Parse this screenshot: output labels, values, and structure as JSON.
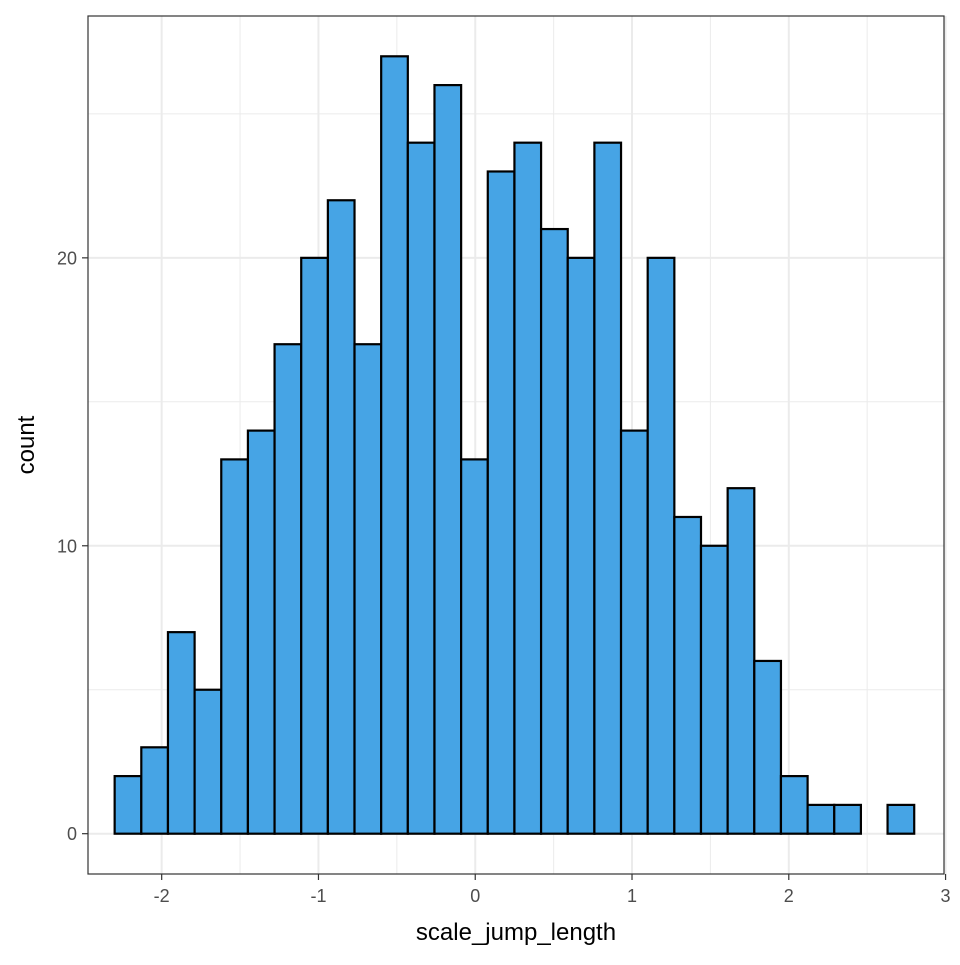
{
  "chart_data": {
    "type": "bar",
    "subtype": "histogram",
    "title": "",
    "xlabel": "scale_jump_length",
    "ylabel": "count",
    "xlim": [
      -2.47,
      2.99
    ],
    "ylim": [
      -1.4,
      28.4
    ],
    "x_ticks": [
      -2,
      -1,
      0,
      1,
      2,
      3
    ],
    "x_tick_labels": [
      "-2",
      "-1",
      "0",
      "1",
      "2",
      "3"
    ],
    "y_ticks": [
      0,
      10,
      20
    ],
    "y_tick_labels": [
      "0",
      "10",
      "20"
    ],
    "x_minor_ticks": [
      -1.5,
      -0.5,
      0.5,
      1.5,
      2.5
    ],
    "y_minor_ticks": [
      5,
      15,
      25
    ],
    "bin_width": 0.17,
    "bins": [
      {
        "center": -2.215,
        "count": 2
      },
      {
        "center": -2.045,
        "count": 3
      },
      {
        "center": -1.875,
        "count": 7
      },
      {
        "center": -1.705,
        "count": 5
      },
      {
        "center": -1.535,
        "count": 13
      },
      {
        "center": -1.365,
        "count": 14
      },
      {
        "center": -1.195,
        "count": 17
      },
      {
        "center": -1.025,
        "count": 20
      },
      {
        "center": -0.855,
        "count": 22
      },
      {
        "center": -0.685,
        "count": 17
      },
      {
        "center": -0.515,
        "count": 27
      },
      {
        "center": -0.345,
        "count": 24
      },
      {
        "center": -0.175,
        "count": 26
      },
      {
        "center": -0.005,
        "count": 13
      },
      {
        "center": 0.165,
        "count": 23
      },
      {
        "center": 0.335,
        "count": 24
      },
      {
        "center": 0.505,
        "count": 21
      },
      {
        "center": 0.675,
        "count": 20
      },
      {
        "center": 0.845,
        "count": 24
      },
      {
        "center": 1.015,
        "count": 14
      },
      {
        "center": 1.185,
        "count": 20
      },
      {
        "center": 1.355,
        "count": 11
      },
      {
        "center": 1.525,
        "count": 10
      },
      {
        "center": 1.695,
        "count": 12
      },
      {
        "center": 1.865,
        "count": 6
      },
      {
        "center": 2.035,
        "count": 2
      },
      {
        "center": 2.205,
        "count": 1
      },
      {
        "center": 2.375,
        "count": 1
      },
      {
        "center": 2.545,
        "count": 0
      },
      {
        "center": 2.715,
        "count": 1
      }
    ],
    "bar_fill": "#46a4e5",
    "bar_outline": "#000000",
    "grid": true,
    "legend": "none",
    "theme": "bw"
  }
}
